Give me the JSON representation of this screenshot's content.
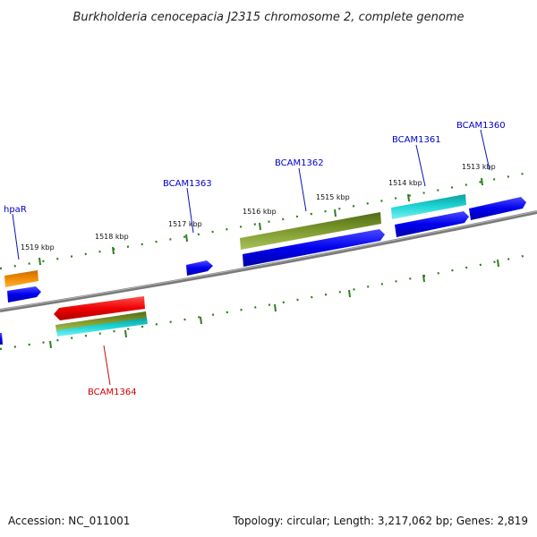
{
  "title": "Burkholderia cenocepacia J2315 chromosome 2, complete genome",
  "footer": {
    "accession": "Accession: NC_011001",
    "summary": "Topology: circular; Length: 3,217,062 bp; Genes: 2,819"
  },
  "ticks": [
    "1513 kbp",
    "1514 kbp",
    "1515 kbp",
    "1516 kbp",
    "1517 kbp",
    "1518 kbp",
    "1519 kbp"
  ],
  "genes": [
    {
      "label": "BCAM1360",
      "color": "#0000cc"
    },
    {
      "label": "BCAM1361",
      "color": "#0000cc"
    },
    {
      "label": "BCAM1362",
      "color": "#0000cc"
    },
    {
      "label": "BCAM1363",
      "color": "#0000cc"
    },
    {
      "label": "hpaR",
      "color": "#0000cc"
    },
    {
      "label": "BCAM1364",
      "color": "#cc0000"
    }
  ],
  "colors": {
    "backbone": "#808080",
    "tick": "#2e7d1e",
    "cds": "#0000ee",
    "gene_red": "#ee0000",
    "gene_olive": "#6b8e23",
    "gene_cyan": "#19d3d3",
    "gene_orange": "#f08c00"
  }
}
